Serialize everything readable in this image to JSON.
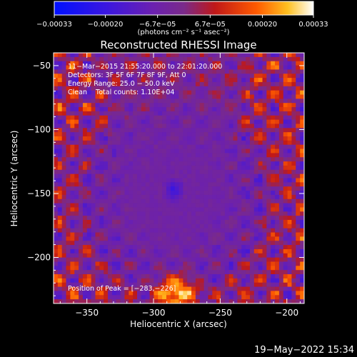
{
  "chart_data": {
    "type": "heatmap",
    "title": "Reconstructed RHESSI Image",
    "xlabel": "Heliocentric X (arcsec)",
    "ylabel": "Heliocentric Y (arcsec)",
    "xlim": [
      -375,
      -187
    ],
    "ylim": [
      -236,
      -40
    ],
    "x_ticks": [
      {
        "value": -350,
        "label": "−350"
      },
      {
        "value": -300,
        "label": "−300"
      },
      {
        "value": -250,
        "label": "−250"
      },
      {
        "value": -200,
        "label": "−200"
      }
    ],
    "y_ticks": [
      {
        "value": -50,
        "label": "−50"
      },
      {
        "value": -100,
        "label": "−100"
      },
      {
        "value": -150,
        "label": "−150"
      },
      {
        "value": -200,
        "label": "−200"
      }
    ],
    "colorbar": {
      "range": [
        -0.00033,
        0.00033
      ],
      "unit_label": "(photons cm⁻² s⁻¹ asec⁻²)",
      "ticks": [
        {
          "value": -0.00033,
          "label": "−0.00033"
        },
        {
          "value": -0.0002,
          "label": "−0.00020"
        },
        {
          "value": -6.7e-05,
          "label": "−6.7e−05"
        },
        {
          "value": 6.7e-05,
          "label": "6.7e−05"
        },
        {
          "value": 0.0002,
          "label": "0.00020"
        },
        {
          "value": 0.00033,
          "label": "0.00033"
        }
      ]
    },
    "annotations": [
      "11−Mar−2015 21:55:20.000 to 22:01:20.000",
      "Detectors: 3F 5F 6F 7F 8F 9F, Att 0",
      "Energy Range: 25.0 − 50.0 keV",
      "Clean    Total counts: 1.10E+04"
    ],
    "peak_label": "Position of Peak = [−283,−226]",
    "peak": {
      "x": -283,
      "y": -226
    },
    "timestamp": "19−May−2022 15:34"
  }
}
